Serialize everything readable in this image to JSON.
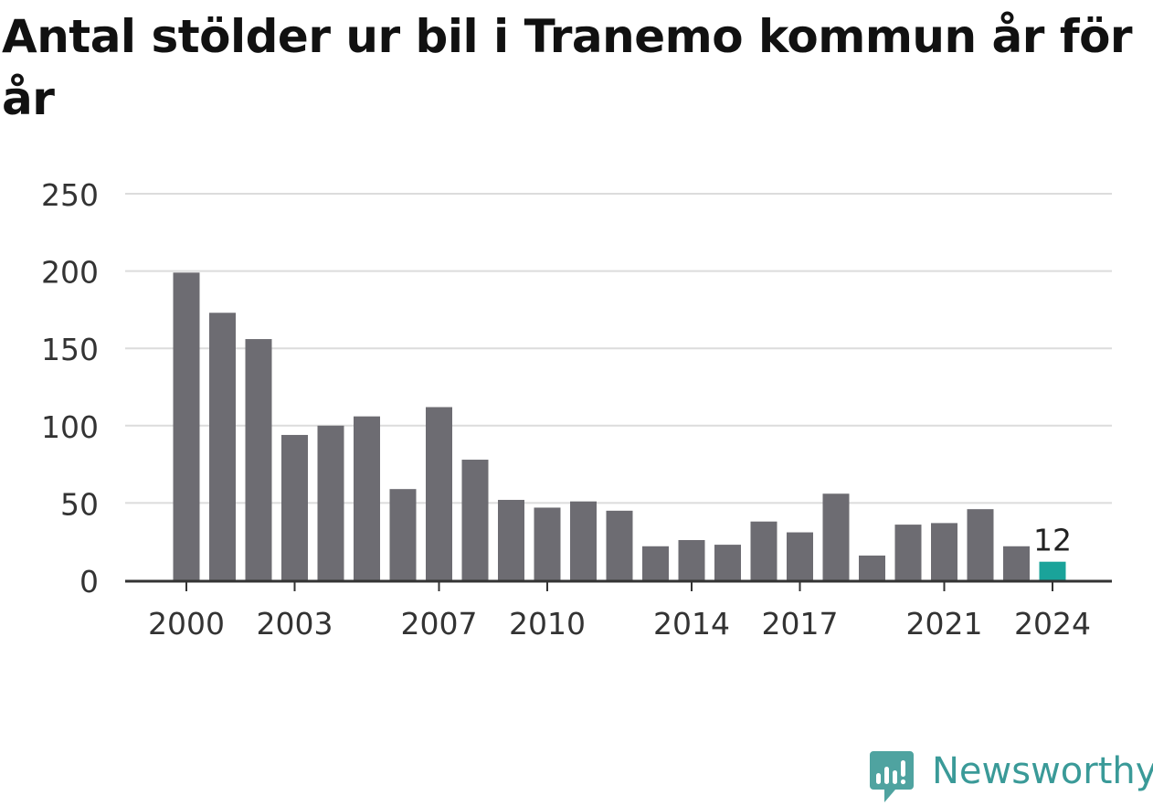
{
  "chart_data": {
    "type": "bar",
    "title": "Antal stölder ur bil i Tranemo kommun år för år",
    "categories": [
      "2000",
      "2001",
      "2002",
      "2003",
      "2004",
      "2005",
      "2006",
      "2007",
      "2008",
      "2009",
      "2010",
      "2011",
      "2012",
      "2013",
      "2014",
      "2015",
      "2016",
      "2017",
      "2018",
      "2019",
      "2020",
      "2021",
      "2022",
      "2023",
      "2024"
    ],
    "values": [
      199,
      173,
      156,
      94,
      100,
      106,
      59,
      112,
      78,
      52,
      47,
      51,
      45,
      22,
      26,
      23,
      38,
      31,
      56,
      16,
      36,
      37,
      46,
      22,
      12
    ],
    "x_tick_labels": [
      "2000",
      "2003",
      "2007",
      "2010",
      "2014",
      "2017",
      "2021",
      "2024"
    ],
    "y_ticks": [
      0,
      50,
      100,
      150,
      200,
      250
    ],
    "ylim": [
      0,
      250
    ],
    "highlight": {
      "category": "2024",
      "label": "12"
    },
    "bar_color": "#6d6c72",
    "highlight_color": "#1aa39a",
    "grid": true,
    "xlabel": "",
    "ylabel": ""
  },
  "brand": {
    "name": "Newsworthy",
    "icon": "newsworthy-logo-icon",
    "color": "#3a9a98"
  }
}
